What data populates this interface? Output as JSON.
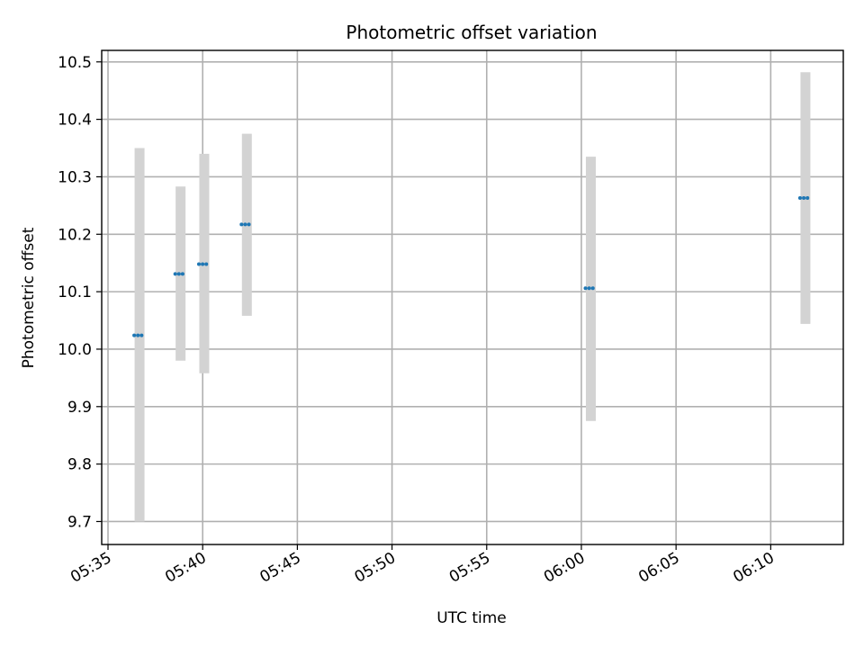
{
  "chart_data": {
    "type": "scatter",
    "title": "Photometric offset variation",
    "xlabel": "UTC time",
    "ylabel": "Photometric offset",
    "xlim": [
      "05:34:40",
      "06:13:50"
    ],
    "ylim": [
      9.66,
      10.52
    ],
    "xticks": [
      "05:35",
      "05:40",
      "05:45",
      "05:50",
      "05:55",
      "06:00",
      "06:05",
      "06:10"
    ],
    "yticks": [
      "9.7",
      "9.8",
      "9.9",
      "10.0",
      "10.1",
      "10.2",
      "10.3",
      "10.4",
      "10.5"
    ],
    "grid": true,
    "series": [
      {
        "x": [
          "05:36:40",
          "05:38:50",
          "05:40:05",
          "05:42:20",
          "06:00:30",
          "06:11:50"
        ],
        "y": [
          10.024,
          10.131,
          10.148,
          10.217,
          10.106,
          10.263
        ],
        "error_low": [
          9.7,
          9.98,
          9.958,
          10.058,
          9.875,
          10.044
        ],
        "error_high": [
          10.35,
          10.283,
          10.34,
          10.375,
          10.335,
          10.482
        ]
      }
    ],
    "colors": {
      "marker": "#1f77b4",
      "errorbar": "#d3d3d3",
      "grid": "#b0b0b0",
      "axes": "#000000"
    }
  }
}
